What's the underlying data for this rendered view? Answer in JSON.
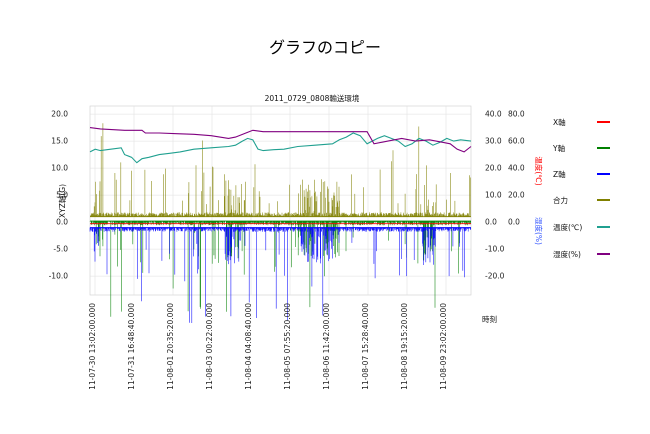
{
  "page": {
    "title": "グラフのコピー"
  },
  "chart_data": {
    "type": "line",
    "title": "2011_0729_0808輸送環境",
    "xlabel": "時刻",
    "ylabel_left": "XYZ軸(G)",
    "ylabel_right_temp": "温度(℃)",
    "ylabel_right_hum": "湿度(%)",
    "ylim_left": [
      -13.5,
      21.5
    ],
    "ylim_temp": [
      -27,
      43
    ],
    "ylim_hum": [
      -54,
      86
    ],
    "yticks_left": [
      "20.0",
      "15.0",
      "10.0",
      "5.0",
      "0.0",
      "-5.0",
      "-10.0"
    ],
    "yticks_left_values": [
      20,
      15,
      10,
      5,
      0,
      -5,
      -10
    ],
    "yticks_temp": [
      "40.0",
      "30.0",
      "20.0",
      "10.0",
      "0.0",
      "-10.0",
      "-20.0"
    ],
    "yticks_temp_values": [
      40,
      30,
      20,
      10,
      0,
      -10,
      -20
    ],
    "yticks_hum": [
      "80.0",
      "60.0",
      "40.0",
      "20.0",
      "0.0"
    ],
    "yticks_hum_values": [
      80,
      60,
      40,
      20,
      0
    ],
    "xticks": [
      "11-07-30 13:02:00.000",
      "11-07-31 16:48:40.000",
      "11-08-01 20:35:20.000",
      "11-08-03 00:22:00.000",
      "11-08-04 04:08:40.000",
      "11-08-05 07:55:20.000",
      "11-08-06 11:42:00.000",
      "11-08-07 15:28:40.000",
      "11-08-08 19:15:20.000",
      "11-08-09 23:02:00.000"
    ],
    "x_range_days": [
      0,
      11
    ],
    "legend": [
      "X軸",
      "Y軸",
      "Z軸",
      "合力",
      "温度(℃)",
      "湿度(%)"
    ],
    "colors": {
      "x": "#ff0000",
      "y": "#008000",
      "z": "#0000ff",
      "resultant": "#808000",
      "temp": "#20a090",
      "hum": "#800080"
    },
    "series": [
      {
        "name": "X軸",
        "axis": "left",
        "x": [
          0,
          11
        ],
        "values": [
          -0.3,
          -0.3
        ]
      },
      {
        "name": "Y軸",
        "axis": "left",
        "x": [
          0,
          11
        ],
        "values": [
          0.2,
          0.2
        ]
      },
      {
        "name": "Z軸",
        "axis": "left",
        "x": [
          0,
          11
        ],
        "values": [
          -1.0,
          -1.0
        ]
      },
      {
        "name": "合力",
        "axis": "left",
        "x": [
          0,
          11
        ],
        "values": [
          1.0,
          1.0
        ]
      },
      {
        "name": "温度(℃)",
        "axis": "temp",
        "x": [
          0,
          0.15,
          0.3,
          0.6,
          0.9,
          1.0,
          1.2,
          1.35,
          1.5,
          1.7,
          2.0,
          2.3,
          2.6,
          3.0,
          3.5,
          4.0,
          4.2,
          4.4,
          4.55,
          4.7,
          4.85,
          5.0,
          5.3,
          5.6,
          6.0,
          6.5,
          7.0,
          7.2,
          7.4,
          7.6,
          7.8,
          8.0,
          8.3,
          8.5,
          8.7,
          8.9,
          9.1,
          9.3,
          9.5,
          9.7,
          9.9,
          10.1,
          10.3,
          10.5,
          10.7,
          11.0
        ],
        "values": [
          26,
          27,
          26.5,
          27,
          27.5,
          25,
          24,
          22,
          23.5,
          24,
          25,
          25.5,
          26,
          27,
          27.5,
          28,
          28.5,
          30,
          31,
          30.5,
          27,
          26.5,
          26.8,
          27,
          28,
          28.5,
          29,
          30.5,
          31.5,
          33,
          32,
          29,
          31,
          32,
          31,
          30,
          28,
          29,
          31,
          30,
          28.5,
          29.5,
          31,
          30,
          30.5,
          30
        ]
      },
      {
        "name": "湿度(%)",
        "axis": "hum",
        "x": [
          0,
          0.3,
          1.0,
          1.5,
          1.6,
          2.0,
          2.5,
          3.0,
          3.5,
          4.0,
          4.2,
          4.5,
          4.7,
          5.0,
          5.5,
          6.0,
          6.5,
          7.0,
          7.5,
          8.0,
          8.2,
          8.6,
          9.0,
          9.4,
          9.8,
          10.2,
          10.4,
          10.6,
          10.8,
          11.0
        ],
        "values": [
          70,
          69,
          68,
          68,
          66,
          66,
          65.5,
          65,
          64,
          62,
          63,
          66,
          68,
          67,
          67,
          67,
          67,
          67,
          67,
          67,
          58,
          60,
          62,
          60,
          61,
          59,
          58,
          54,
          52,
          56
        ]
      }
    ]
  }
}
